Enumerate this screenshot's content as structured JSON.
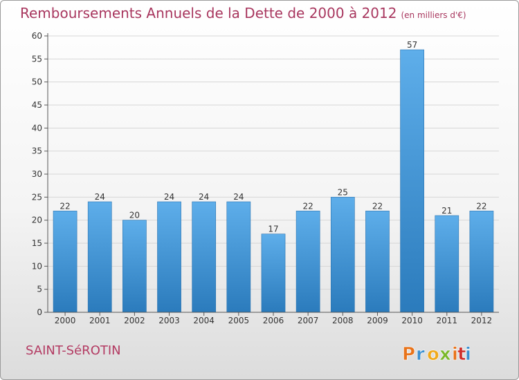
{
  "title": "Remboursements Annuels de la Dette de 2000 à 2012",
  "unit": "(en milliers d'€)",
  "town": "SAINT-SéROTIN",
  "logo_text": "Proxiti",
  "colors": {
    "title": "#a8365e",
    "bar_top": "#5eaeea",
    "bar_bottom": "#2b7bbc",
    "logo_letters": [
      "#e8731a",
      "#3a8fd0",
      "#f0a91b",
      "#7ab829",
      "#e8731a",
      "#d0312d",
      "#3a8fd0"
    ]
  },
  "chart_data": {
    "type": "bar",
    "title": "Remboursements Annuels de la Dette de 2000 à 2012",
    "xlabel": "",
    "ylabel": "",
    "categories": [
      "2000",
      "2001",
      "2002",
      "2003",
      "2004",
      "2005",
      "2006",
      "2007",
      "2008",
      "2009",
      "2010",
      "2011",
      "2012"
    ],
    "values": [
      22,
      24,
      20,
      24,
      24,
      24,
      17,
      22,
      25,
      22,
      57,
      21,
      22
    ],
    "data_labels": [
      "22",
      "24",
      "20",
      "24",
      "24",
      "24",
      "17",
      "22",
      "25",
      "22",
      "57",
      "21",
      "22"
    ],
    "ylim": [
      0,
      60
    ],
    "yticks": [
      0,
      5,
      10,
      15,
      20,
      25,
      30,
      35,
      40,
      45,
      50,
      55,
      60
    ],
    "grid": true,
    "legend": "none"
  }
}
